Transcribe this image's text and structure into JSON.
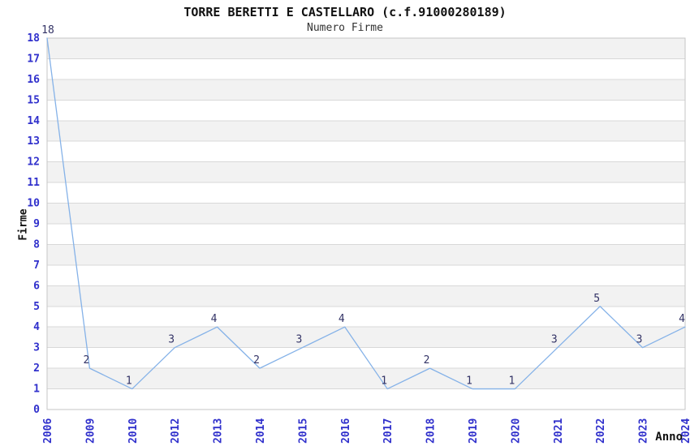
{
  "chart_data": {
    "type": "line",
    "title": "TORRE BERETTI E CASTELLARO (c.f.91000280189)",
    "subtitle": "Numero Firme",
    "xlabel": "Anno",
    "ylabel": "Firme",
    "categories": [
      "2006",
      "2009",
      "2010",
      "2012",
      "2013",
      "2014",
      "2015",
      "2016",
      "2017",
      "2018",
      "2019",
      "2020",
      "2021",
      "2022",
      "2023",
      "2024"
    ],
    "values": [
      18,
      2,
      1,
      3,
      4,
      2,
      3,
      4,
      1,
      2,
      1,
      1,
      3,
      5,
      3,
      4
    ],
    "ylim": [
      0,
      18
    ],
    "y_tick_step": 1,
    "grid": true,
    "legend": "none",
    "band_pattern": "alternating horizontal gray bands between odd and even y gridlines",
    "data_labels_shown": true,
    "colors": {
      "line": "#85b2e8",
      "tick_label": "#3030cc",
      "data_label": "#333366",
      "band": "#f2f2f2",
      "gridline": "#d8d8d8",
      "border": "#c6c6c6",
      "title": "#111111",
      "subtitle": "#333333",
      "background": "#ffffff"
    }
  }
}
